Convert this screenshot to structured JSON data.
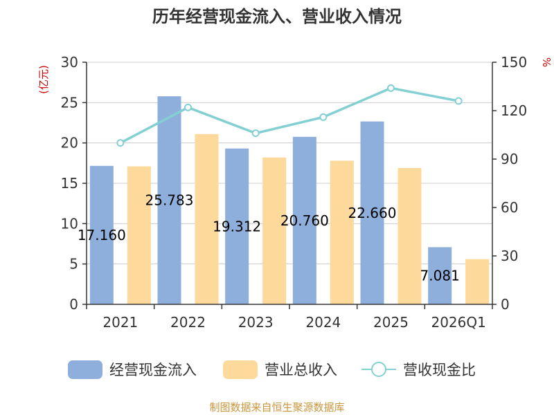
{
  "chart_data": {
    "type": "bar",
    "title": "历年经营现金流入、营业收入情况",
    "categories": [
      "2021",
      "2022",
      "2023",
      "2024",
      "2025",
      "2026Q1"
    ],
    "y_left": {
      "unit": "(亿元)",
      "ylim": [
        0,
        30
      ],
      "ticks": [
        0,
        5,
        10,
        15,
        20,
        25,
        30
      ]
    },
    "y_right": {
      "unit": "%",
      "ylim": [
        0,
        150
      ],
      "ticks": [
        0,
        30,
        60,
        90,
        120,
        150
      ]
    },
    "grid": true,
    "legend_position": "bottom",
    "series": [
      {
        "name": "经营现金流入",
        "type": "bar",
        "axis": "left",
        "color": "#8eaedb",
        "values": [
          17.16,
          25.783,
          19.312,
          20.76,
          22.66,
          7.081
        ],
        "labels": [
          "17.160",
          "25.783",
          "19.312",
          "20.760",
          "22.660",
          "7.081"
        ]
      },
      {
        "name": "营业总收入",
        "type": "bar",
        "axis": "left",
        "color": "#fdd99b",
        "values": [
          17.1,
          21.1,
          18.2,
          17.8,
          16.9,
          5.6
        ]
      },
      {
        "name": "营收现金比",
        "type": "line",
        "axis": "right",
        "color": "#83d0d3",
        "values": [
          100,
          122,
          106,
          116,
          134,
          126
        ]
      }
    ]
  },
  "source": "制图数据来自恒生聚源数据库"
}
